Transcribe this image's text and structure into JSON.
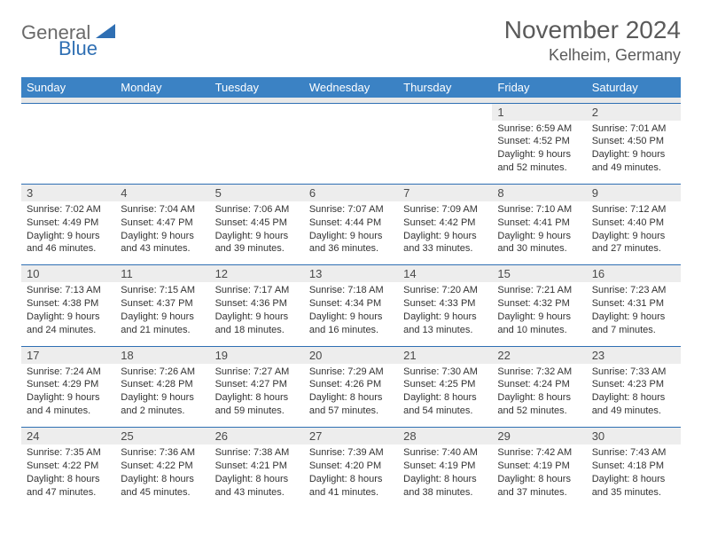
{
  "brand": {
    "word1": "General",
    "word2": "Blue",
    "tri_color": "#2f6fb3",
    "text1_color": "#6a6a6a"
  },
  "header": {
    "title": "November 2024",
    "location": "Kelheim, Germany"
  },
  "columns": [
    "Sunday",
    "Monday",
    "Tuesday",
    "Wednesday",
    "Thursday",
    "Friday",
    "Saturday"
  ],
  "style": {
    "header_bg": "#3b82c4",
    "header_fg": "#ffffff",
    "daynum_bg": "#ededed",
    "row_border": "#2f6fb3",
    "body_font_size": 11,
    "daynum_font_size": 13,
    "dow_font_size": 13,
    "title_font_size": 28,
    "location_font_size": 18
  },
  "weeks": [
    [
      {
        "n": "",
        "lines": []
      },
      {
        "n": "",
        "lines": []
      },
      {
        "n": "",
        "lines": []
      },
      {
        "n": "",
        "lines": []
      },
      {
        "n": "",
        "lines": []
      },
      {
        "n": "1",
        "lines": [
          "Sunrise: 6:59 AM",
          "Sunset: 4:52 PM",
          "Daylight: 9 hours",
          "and 52 minutes."
        ]
      },
      {
        "n": "2",
        "lines": [
          "Sunrise: 7:01 AM",
          "Sunset: 4:50 PM",
          "Daylight: 9 hours",
          "and 49 minutes."
        ]
      }
    ],
    [
      {
        "n": "3",
        "lines": [
          "Sunrise: 7:02 AM",
          "Sunset: 4:49 PM",
          "Daylight: 9 hours",
          "and 46 minutes."
        ]
      },
      {
        "n": "4",
        "lines": [
          "Sunrise: 7:04 AM",
          "Sunset: 4:47 PM",
          "Daylight: 9 hours",
          "and 43 minutes."
        ]
      },
      {
        "n": "5",
        "lines": [
          "Sunrise: 7:06 AM",
          "Sunset: 4:45 PM",
          "Daylight: 9 hours",
          "and 39 minutes."
        ]
      },
      {
        "n": "6",
        "lines": [
          "Sunrise: 7:07 AM",
          "Sunset: 4:44 PM",
          "Daylight: 9 hours",
          "and 36 minutes."
        ]
      },
      {
        "n": "7",
        "lines": [
          "Sunrise: 7:09 AM",
          "Sunset: 4:42 PM",
          "Daylight: 9 hours",
          "and 33 minutes."
        ]
      },
      {
        "n": "8",
        "lines": [
          "Sunrise: 7:10 AM",
          "Sunset: 4:41 PM",
          "Daylight: 9 hours",
          "and 30 minutes."
        ]
      },
      {
        "n": "9",
        "lines": [
          "Sunrise: 7:12 AM",
          "Sunset: 4:40 PM",
          "Daylight: 9 hours",
          "and 27 minutes."
        ]
      }
    ],
    [
      {
        "n": "10",
        "lines": [
          "Sunrise: 7:13 AM",
          "Sunset: 4:38 PM",
          "Daylight: 9 hours",
          "and 24 minutes."
        ]
      },
      {
        "n": "11",
        "lines": [
          "Sunrise: 7:15 AM",
          "Sunset: 4:37 PM",
          "Daylight: 9 hours",
          "and 21 minutes."
        ]
      },
      {
        "n": "12",
        "lines": [
          "Sunrise: 7:17 AM",
          "Sunset: 4:36 PM",
          "Daylight: 9 hours",
          "and 18 minutes."
        ]
      },
      {
        "n": "13",
        "lines": [
          "Sunrise: 7:18 AM",
          "Sunset: 4:34 PM",
          "Daylight: 9 hours",
          "and 16 minutes."
        ]
      },
      {
        "n": "14",
        "lines": [
          "Sunrise: 7:20 AM",
          "Sunset: 4:33 PM",
          "Daylight: 9 hours",
          "and 13 minutes."
        ]
      },
      {
        "n": "15",
        "lines": [
          "Sunrise: 7:21 AM",
          "Sunset: 4:32 PM",
          "Daylight: 9 hours",
          "and 10 minutes."
        ]
      },
      {
        "n": "16",
        "lines": [
          "Sunrise: 7:23 AM",
          "Sunset: 4:31 PM",
          "Daylight: 9 hours",
          "and 7 minutes."
        ]
      }
    ],
    [
      {
        "n": "17",
        "lines": [
          "Sunrise: 7:24 AM",
          "Sunset: 4:29 PM",
          "Daylight: 9 hours",
          "and 4 minutes."
        ]
      },
      {
        "n": "18",
        "lines": [
          "Sunrise: 7:26 AM",
          "Sunset: 4:28 PM",
          "Daylight: 9 hours",
          "and 2 minutes."
        ]
      },
      {
        "n": "19",
        "lines": [
          "Sunrise: 7:27 AM",
          "Sunset: 4:27 PM",
          "Daylight: 8 hours",
          "and 59 minutes."
        ]
      },
      {
        "n": "20",
        "lines": [
          "Sunrise: 7:29 AM",
          "Sunset: 4:26 PM",
          "Daylight: 8 hours",
          "and 57 minutes."
        ]
      },
      {
        "n": "21",
        "lines": [
          "Sunrise: 7:30 AM",
          "Sunset: 4:25 PM",
          "Daylight: 8 hours",
          "and 54 minutes."
        ]
      },
      {
        "n": "22",
        "lines": [
          "Sunrise: 7:32 AM",
          "Sunset: 4:24 PM",
          "Daylight: 8 hours",
          "and 52 minutes."
        ]
      },
      {
        "n": "23",
        "lines": [
          "Sunrise: 7:33 AM",
          "Sunset: 4:23 PM",
          "Daylight: 8 hours",
          "and 49 minutes."
        ]
      }
    ],
    [
      {
        "n": "24",
        "lines": [
          "Sunrise: 7:35 AM",
          "Sunset: 4:22 PM",
          "Daylight: 8 hours",
          "and 47 minutes."
        ]
      },
      {
        "n": "25",
        "lines": [
          "Sunrise: 7:36 AM",
          "Sunset: 4:22 PM",
          "Daylight: 8 hours",
          "and 45 minutes."
        ]
      },
      {
        "n": "26",
        "lines": [
          "Sunrise: 7:38 AM",
          "Sunset: 4:21 PM",
          "Daylight: 8 hours",
          "and 43 minutes."
        ]
      },
      {
        "n": "27",
        "lines": [
          "Sunrise: 7:39 AM",
          "Sunset: 4:20 PM",
          "Daylight: 8 hours",
          "and 41 minutes."
        ]
      },
      {
        "n": "28",
        "lines": [
          "Sunrise: 7:40 AM",
          "Sunset: 4:19 PM",
          "Daylight: 8 hours",
          "and 38 minutes."
        ]
      },
      {
        "n": "29",
        "lines": [
          "Sunrise: 7:42 AM",
          "Sunset: 4:19 PM",
          "Daylight: 8 hours",
          "and 37 minutes."
        ]
      },
      {
        "n": "30",
        "lines": [
          "Sunrise: 7:43 AM",
          "Sunset: 4:18 PM",
          "Daylight: 8 hours",
          "and 35 minutes."
        ]
      }
    ]
  ]
}
